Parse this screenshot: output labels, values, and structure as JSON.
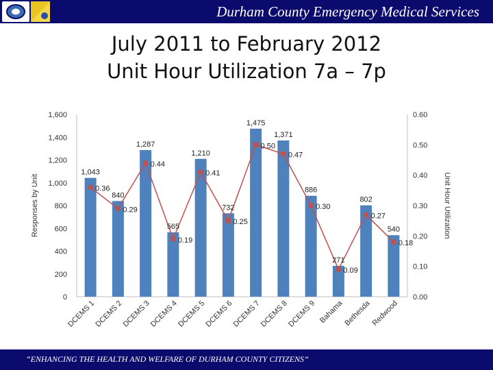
{
  "header": {
    "title": "Durham County Emergency Medical Services",
    "logos": [
      "seal-logo",
      "star-of-life-logo"
    ]
  },
  "slide_title": {
    "line1": "July 2011 to February 2012",
    "line2": "Unit Hour Utilization 7a – 7p"
  },
  "footer": {
    "text": "“ENHANCING THE HEALTH AND WELFARE OF DURHAM COUNTY CITIZENS”"
  },
  "colors": {
    "header_bg": "#0b0b6e",
    "bar": "#4f81bd",
    "line": "#c0504d"
  },
  "chart_data": {
    "type": "bar",
    "categories": [
      "DCEMS 1",
      "DCEMS 2",
      "DCEMS 3",
      "DCEMS 4",
      "DCEMS 5",
      "DCEMS 6",
      "DCEMS 7",
      "DCEMS 8",
      "DCEMS 9",
      "Bahama",
      "Bethesda",
      "Redwood"
    ],
    "series": [
      {
        "name": "",
        "chart": "bar",
        "axis": "left",
        "values": [
          1043,
          840,
          1287,
          565,
          1210,
          732,
          1475,
          1371,
          886,
          271,
          802,
          540
        ],
        "labels": [
          "1,043",
          "840",
          "1,287",
          "565",
          "1,210",
          "732",
          "1,475",
          "1,371",
          "886",
          "271",
          "802",
          "540"
        ]
      },
      {
        "name": "",
        "chart": "line",
        "axis": "right",
        "values": [
          0.36,
          0.29,
          0.44,
          0.19,
          0.41,
          0.25,
          0.5,
          0.47,
          0.3,
          0.09,
          0.27,
          0.18
        ],
        "labels": [
          "0.36",
          "0.29",
          "0.44",
          "0.19",
          "0.41",
          "0.25",
          "0.50",
          "0.47",
          "0.30",
          "0.09",
          "0.27",
          "0.18"
        ]
      }
    ],
    "ylabel": "Responses by Unit",
    "y2label": "Unit Hour Utilization",
    "ylim": [
      0,
      1600
    ],
    "y2lim": [
      0,
      0.6
    ],
    "yticks": [
      "0",
      "200",
      "400",
      "600",
      "800",
      "1,000",
      "1,200",
      "1,400",
      "1,600"
    ],
    "y2ticks": [
      "0.00",
      "0.10",
      "0.20",
      "0.30",
      "0.40",
      "0.50",
      "0.60"
    ],
    "grid": false,
    "legend": "none"
  }
}
